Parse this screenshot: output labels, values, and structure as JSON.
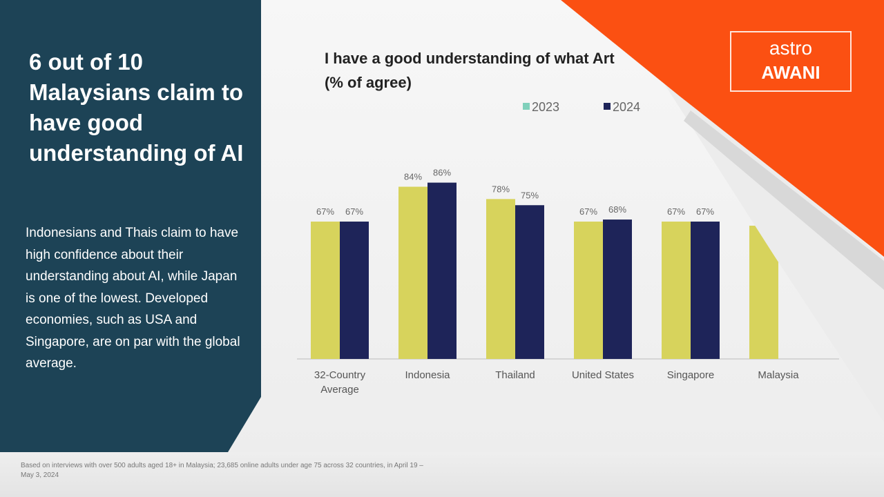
{
  "panel": {
    "headline": "6 out of 10 Malaysians claim to have good understanding of AI",
    "body": "Indonesians and Thais claim to have high confidence about their understanding about AI, while Japan is one of the lowest. Developed economies, such as USA and Singapore, are on par with the global average."
  },
  "chart_data": {
    "type": "bar",
    "title": "I have a good understanding of what Art",
    "subtitle": "(% of agree)",
    "categories": [
      "32-Country Average",
      "Indonesia",
      "Thailand",
      "United States",
      "Singapore",
      "Malaysia"
    ],
    "series": [
      {
        "name": "2023",
        "color": "#d7d35c",
        "legend_color": "#80d0bb",
        "values": [
          67,
          84,
          78,
          67,
          67,
          65
        ],
        "value_labels": [
          "67%",
          "84%",
          "78%",
          "67%",
          "67%",
          null
        ]
      },
      {
        "name": "2024",
        "color": "#1e2459",
        "legend_color": "#1e2459",
        "values": [
          67,
          86,
          75,
          68,
          67,
          null
        ],
        "value_labels": [
          "67%",
          "86%",
          "75%",
          "68%",
          "67%",
          null
        ]
      }
    ],
    "ylim": [
      0,
      100
    ]
  },
  "footnote": "Based on interviews with over 500 adults aged 18+ in Malaysia; 23,685 online adults under age 75 across 32 countries, in April 19 – May 3, 2024",
  "logo": {
    "top": "astro",
    "bottom": "AWANI"
  }
}
